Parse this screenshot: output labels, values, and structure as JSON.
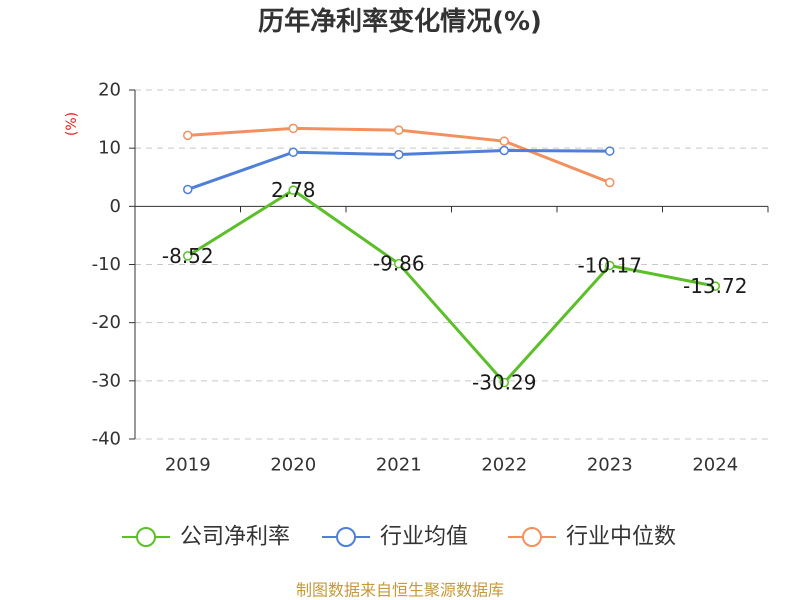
{
  "chart_data": {
    "type": "line",
    "title": "历年净利率变化情况(%)",
    "xlabel": "",
    "ylabel": "(%)",
    "categories": [
      "2019",
      "2020",
      "2021",
      "2022",
      "2023",
      "2024"
    ],
    "ylim": [
      -40,
      20
    ],
    "yticks": [
      20,
      10,
      0,
      -10,
      -20,
      -30,
      -40
    ],
    "grid": true,
    "legend_position": "bottom",
    "series": [
      {
        "name": "公司净利率",
        "color": "#5CBF2A",
        "show_data_labels": true,
        "values": [
          -8.52,
          2.78,
          -9.86,
          -30.29,
          -10.17,
          -13.72
        ]
      },
      {
        "name": "行业均值",
        "color": "#4F7FD8",
        "show_data_labels": false,
        "values": [
          2.9,
          9.3,
          8.9,
          9.6,
          9.5,
          null
        ]
      },
      {
        "name": "行业中位数",
        "color": "#F3905E",
        "show_data_labels": false,
        "values": [
          12.2,
          13.4,
          13.1,
          11.2,
          4.1,
          null
        ]
      }
    ]
  },
  "footer": {
    "source": "制图数据来自恒生聚源数据库"
  },
  "colors": {
    "ylabel": "#E3211C",
    "footer": "#C49A3C"
  }
}
